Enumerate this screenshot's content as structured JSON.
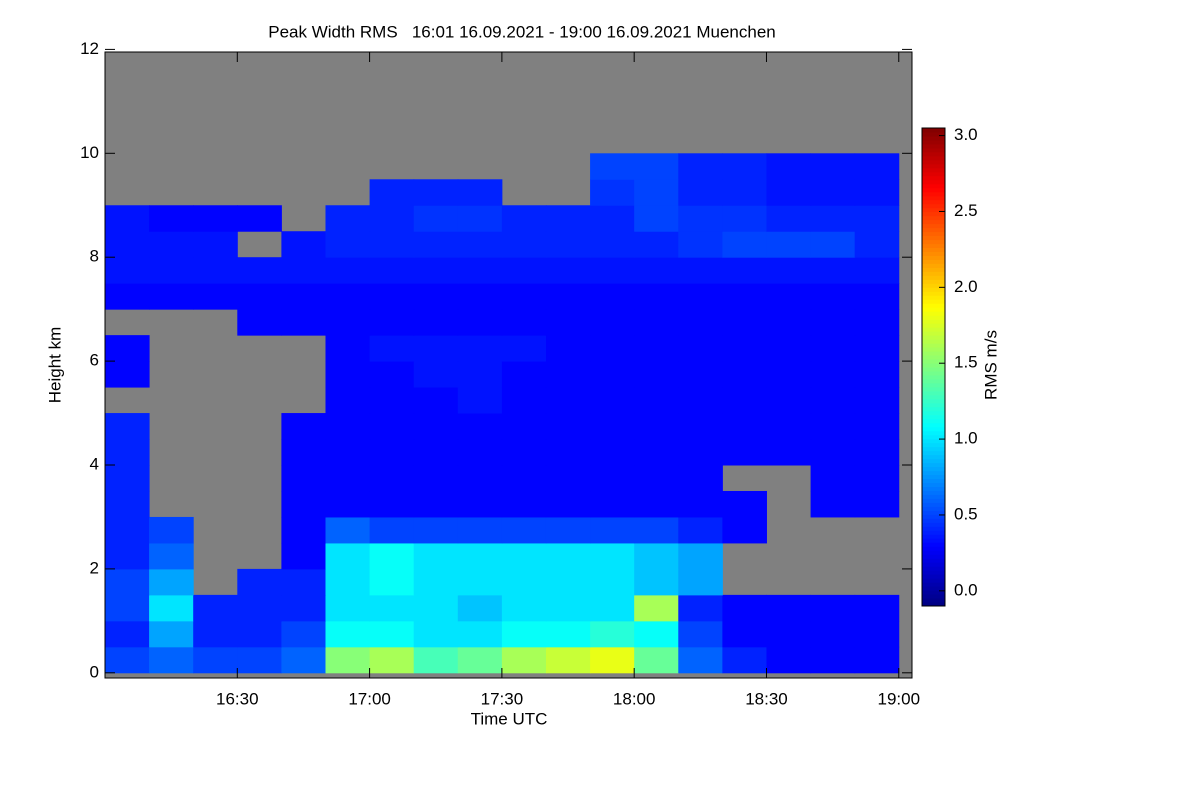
{
  "chart_data": {
    "type": "heatmap",
    "title": "Peak Width RMS   16:01 16.09.2021 - 19:00 16.09.2021 Muenchen",
    "x_label": "Time UTC",
    "y_label": "Height km",
    "colorbar_label": "RMS m/s",
    "xlim": [
      960,
      1143
    ],
    "xticks": [
      {
        "value": 990,
        "label": "16:30"
      },
      {
        "value": 1020,
        "label": "17:00"
      },
      {
        "value": 1050,
        "label": "17:30"
      },
      {
        "value": 1080,
        "label": "18:00"
      },
      {
        "value": 1110,
        "label": "18:30"
      },
      {
        "value": 1140,
        "label": "19:00"
      }
    ],
    "ylim": [
      -0.1,
      11.95
    ],
    "yticks": [
      0,
      2,
      4,
      6,
      8,
      10,
      12
    ],
    "clim": [
      -0.1,
      3.05
    ],
    "cticks": [
      {
        "value": 0,
        "label": "0.0"
      },
      {
        "value": 0.5,
        "label": "0.5"
      },
      {
        "value": 1,
        "label": "1.0"
      },
      {
        "value": 1.5,
        "label": "1.5"
      },
      {
        "value": 2,
        "label": "2.0"
      },
      {
        "value": 2.5,
        "label": "2.5"
      },
      {
        "value": 3,
        "label": "3.0"
      }
    ],
    "colormap": "jet",
    "missing_color": "#808080",
    "x_edges": [
      960,
      970,
      980,
      990,
      1000,
      1010,
      1020,
      1030,
      1040,
      1050,
      1060,
      1070,
      1080,
      1090,
      1100,
      1110,
      1120,
      1130,
      1140
    ],
    "y_edges": [
      0,
      0.5,
      1,
      1.5,
      2,
      2.5,
      3,
      3.5,
      4,
      4.5,
      5,
      5.5,
      6,
      6.5,
      7,
      7.5,
      8,
      8.5,
      9,
      9.5,
      10
    ],
    "z": [
      [
        0.5,
        0.6,
        0.5,
        0.5,
        0.6,
        1.5,
        1.6,
        1.3,
        1.4,
        1.6,
        1.7,
        1.8,
        1.4,
        0.6,
        0.4,
        0.3,
        0.3,
        0.3
      ],
      [
        0.4,
        0.8,
        0.4,
        0.4,
        0.5,
        1.1,
        1.1,
        1.0,
        1.0,
        1.1,
        1.1,
        1.2,
        1.1,
        0.5,
        0.3,
        0.3,
        0.3,
        0.3
      ],
      [
        0.5,
        1.0,
        0.4,
        0.4,
        0.4,
        1.0,
        1.0,
        1.0,
        0.9,
        1.0,
        1.0,
        1.0,
        1.6,
        0.4,
        0.3,
        0.3,
        0.3,
        0.3
      ],
      [
        0.5,
        0.8,
        null,
        0.4,
        0.4,
        1.0,
        1.1,
        1.0,
        1.0,
        1.0,
        1.0,
        1.0,
        0.9,
        0.8,
        null,
        null,
        null,
        null
      ],
      [
        0.4,
        0.6,
        null,
        null,
        0.3,
        1.0,
        1.1,
        1.0,
        1.0,
        1.0,
        1.0,
        1.0,
        0.9,
        0.8,
        null,
        null,
        null,
        null
      ],
      [
        0.4,
        0.5,
        null,
        null,
        0.3,
        0.6,
        0.5,
        0.5,
        0.5,
        0.5,
        0.5,
        0.5,
        0.5,
        0.4,
        0.3,
        null,
        null,
        null
      ],
      [
        0.4,
        null,
        null,
        null,
        0.3,
        0.3,
        0.3,
        0.3,
        0.3,
        0.3,
        0.3,
        0.3,
        0.3,
        0.3,
        0.3,
        null,
        0.3,
        0.3
      ],
      [
        0.4,
        null,
        null,
        null,
        0.3,
        0.3,
        0.3,
        0.3,
        0.3,
        0.3,
        0.3,
        0.3,
        0.3,
        0.3,
        null,
        null,
        0.3,
        0.3
      ],
      [
        0.4,
        null,
        null,
        null,
        0.3,
        0.3,
        0.3,
        0.3,
        0.3,
        0.3,
        0.3,
        0.3,
        0.3,
        0.3,
        0.3,
        0.3,
        0.3,
        0.3
      ],
      [
        0.4,
        null,
        null,
        null,
        0.3,
        0.3,
        0.3,
        0.3,
        0.3,
        0.3,
        0.3,
        0.3,
        0.3,
        0.3,
        0.3,
        0.3,
        0.3,
        0.3
      ],
      [
        null,
        null,
        null,
        null,
        null,
        0.3,
        0.3,
        0.3,
        0.35,
        0.3,
        0.3,
        0.3,
        0.3,
        0.3,
        0.3,
        0.3,
        0.3,
        0.3
      ],
      [
        0.3,
        null,
        null,
        null,
        null,
        0.3,
        0.3,
        0.35,
        0.35,
        0.3,
        0.3,
        0.3,
        0.3,
        0.3,
        0.3,
        0.3,
        0.3,
        0.3
      ],
      [
        0.3,
        null,
        null,
        null,
        null,
        0.3,
        0.35,
        0.35,
        0.35,
        0.35,
        0.3,
        0.3,
        0.3,
        0.3,
        0.3,
        0.3,
        0.3,
        0.3
      ],
      [
        null,
        null,
        null,
        0.3,
        0.3,
        0.3,
        0.3,
        0.3,
        0.3,
        0.3,
        0.3,
        0.3,
        0.3,
        0.3,
        0.3,
        0.3,
        0.3,
        0.3
      ],
      [
        0.3,
        0.3,
        0.3,
        0.3,
        0.3,
        0.3,
        0.3,
        0.3,
        0.3,
        0.3,
        0.3,
        0.3,
        0.3,
        0.3,
        0.3,
        0.3,
        0.3,
        0.3
      ],
      [
        0.35,
        0.35,
        0.35,
        0.35,
        0.35,
        0.35,
        0.35,
        0.35,
        0.35,
        0.35,
        0.35,
        0.35,
        0.35,
        0.35,
        0.35,
        0.35,
        0.35,
        0.35
      ],
      [
        0.35,
        0.35,
        0.35,
        null,
        0.35,
        0.4,
        0.4,
        0.4,
        0.4,
        0.4,
        0.4,
        0.4,
        0.4,
        0.45,
        0.5,
        0.5,
        0.5,
        0.4
      ],
      [
        0.35,
        0.3,
        0.3,
        0.3,
        null,
        0.4,
        0.4,
        0.45,
        0.45,
        0.4,
        0.4,
        0.4,
        0.5,
        0.45,
        0.45,
        0.4,
        0.4,
        0.4
      ],
      [
        null,
        null,
        null,
        null,
        null,
        null,
        0.4,
        0.4,
        0.4,
        null,
        null,
        0.45,
        0.5,
        0.4,
        0.4,
        0.35,
        0.35,
        0.35
      ],
      [
        null,
        null,
        null,
        null,
        null,
        null,
        null,
        null,
        null,
        null,
        null,
        0.5,
        0.5,
        0.4,
        0.4,
        0.35,
        0.35,
        0.35
      ]
    ]
  }
}
